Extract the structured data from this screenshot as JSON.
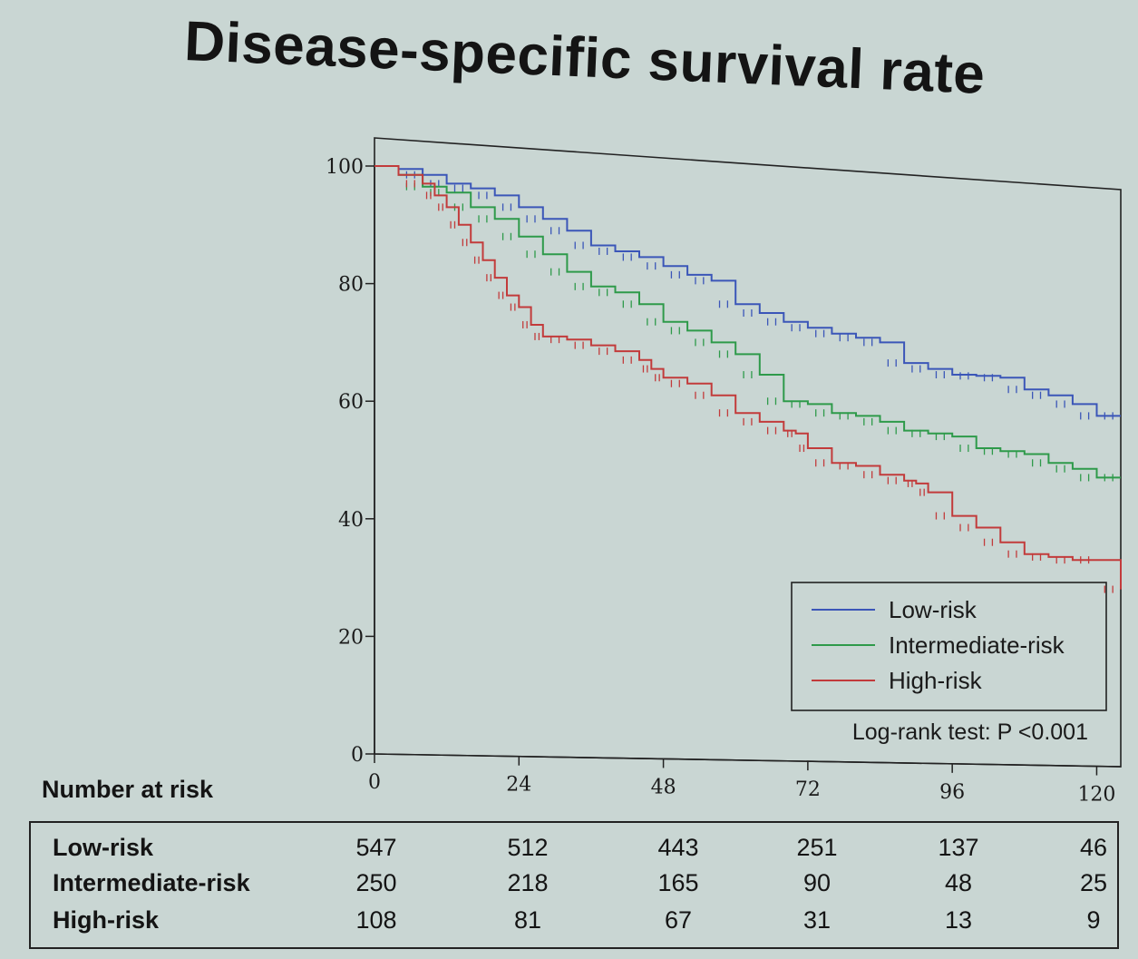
{
  "chart_data": {
    "type": "line",
    "title": "Disease-specific survival rate",
    "xlabel": "",
    "ylabel": "",
    "xlim": [
      0,
      120
    ],
    "ylim": [
      0,
      100
    ],
    "xticks": [
      0,
      24,
      48,
      72,
      96,
      120
    ],
    "yticks": [
      0,
      20,
      40,
      60,
      80,
      100
    ],
    "grid": false,
    "legend_position": "bottom-right",
    "annotation": "Log-rank test: P <0.001",
    "series": [
      {
        "name": "Low-risk",
        "color": "#3b56b8",
        "x": [
          0,
          4,
          8,
          12,
          16,
          20,
          24,
          28,
          32,
          36,
          40,
          44,
          48,
          52,
          56,
          60,
          64,
          68,
          72,
          76,
          80,
          84,
          88,
          92,
          96,
          100,
          104,
          108,
          112,
          116,
          120,
          124
        ],
        "y": [
          100,
          99.5,
          98.5,
          97,
          96.2,
          95,
          93,
          91,
          89,
          86.5,
          85.5,
          84.5,
          83,
          81.5,
          80.5,
          76.5,
          75,
          73.5,
          72.5,
          71.5,
          70.8,
          70,
          66.5,
          65.5,
          64.5,
          64.3,
          64,
          62,
          61,
          59.5,
          57.5,
          57.5
        ]
      },
      {
        "name": "Intermediate-risk",
        "color": "#2e9a4a",
        "x": [
          0,
          4,
          8,
          12,
          16,
          20,
          24,
          28,
          32,
          36,
          40,
          44,
          48,
          52,
          56,
          60,
          64,
          68,
          72,
          76,
          80,
          84,
          88,
          92,
          96,
          100,
          104,
          108,
          112,
          116,
          120,
          124
        ],
        "y": [
          100,
          98.5,
          96.5,
          95.5,
          93,
          91,
          88,
          85,
          82,
          79.5,
          78.5,
          76.5,
          73.5,
          72,
          70,
          68,
          64.5,
          60,
          59.5,
          58,
          57.5,
          56.5,
          55,
          54.5,
          54,
          52,
          51.5,
          51,
          49.5,
          48.5,
          47,
          47
        ]
      },
      {
        "name": "High-risk",
        "color": "#c23b3b",
        "x": [
          0,
          4,
          8,
          10,
          12,
          14,
          16,
          18,
          20,
          22,
          24,
          26,
          28,
          32,
          36,
          40,
          44,
          46,
          48,
          52,
          56,
          60,
          64,
          68,
          70,
          72,
          76,
          80,
          84,
          88,
          90,
          92,
          96,
          100,
          104,
          108,
          112,
          116,
          120,
          124
        ],
        "y": [
          100,
          98.5,
          97,
          95,
          93,
          90,
          87,
          84,
          81,
          78,
          76,
          73,
          71,
          70.5,
          69.5,
          68.5,
          67,
          65.5,
          64,
          63,
          61,
          58,
          56.5,
          55,
          54.5,
          52,
          49.5,
          49,
          47.5,
          46.5,
          46,
          44.5,
          40.5,
          38.5,
          36,
          34,
          33.5,
          33,
          33,
          28
        ]
      }
    ]
  },
  "risk_table": {
    "label": "Number at risk",
    "rows": [
      {
        "name": "Low-risk",
        "values": [
          "547",
          "512",
          "443",
          "251",
          "137",
          "46"
        ]
      },
      {
        "name": "Intermediate-risk",
        "values": [
          "250",
          "218",
          "165",
          "90",
          "48",
          "25"
        ]
      },
      {
        "name": "High-risk",
        "values": [
          "108",
          "81",
          "67",
          "31",
          "13",
          "9"
        ]
      }
    ]
  }
}
